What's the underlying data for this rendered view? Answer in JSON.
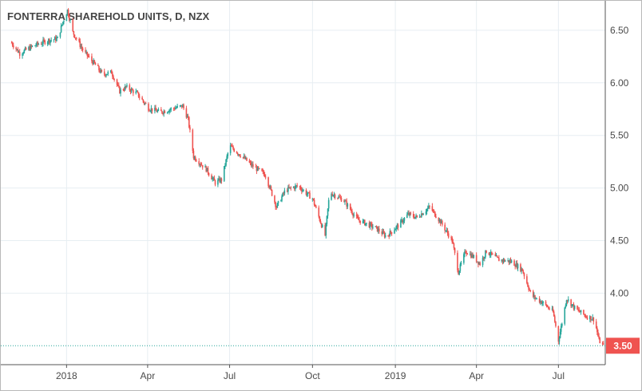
{
  "chart_data": {
    "type": "candlestick",
    "title": "FONTERRA SHAREHOLD UNITS, D, NZX",
    "y_ticks": [
      "6.50",
      "6.00",
      "5.50",
      "5.00",
      "4.50",
      "4.00"
    ],
    "x_ticks": [
      "2018",
      "Apr",
      "Jul",
      "Oct",
      "2019",
      "Apr",
      "Jul"
    ],
    "ylim": [
      3.32,
      6.78
    ],
    "last_price": "3.50",
    "grid": true,
    "colors": {
      "up": "#26a69a",
      "down": "#ef5350",
      "last": "#ef5350",
      "grid": "#e7eef2"
    },
    "price_path": [
      [
        "2017-11-01",
        6.38
      ],
      [
        "2017-11-10",
        6.28
      ],
      [
        "2017-11-25",
        6.35
      ],
      [
        "2017-12-10",
        6.4
      ],
      [
        "2017-12-22",
        6.42
      ],
      [
        "2017-12-28",
        6.58
      ],
      [
        "2018-01-02",
        6.69
      ],
      [
        "2018-01-08",
        6.48
      ],
      [
        "2018-01-20",
        6.3
      ],
      [
        "2018-02-01",
        6.18
      ],
      [
        "2018-02-10",
        6.08
      ],
      [
        "2018-02-20",
        6.1
      ],
      [
        "2018-03-01",
        5.92
      ],
      [
        "2018-03-08",
        5.96
      ],
      [
        "2018-03-20",
        5.9
      ],
      [
        "2018-04-02",
        5.76
      ],
      [
        "2018-04-15",
        5.72
      ],
      [
        "2018-05-01",
        5.76
      ],
      [
        "2018-05-10",
        5.78
      ],
      [
        "2018-05-16",
        5.65
      ],
      [
        "2018-05-22",
        5.3
      ],
      [
        "2018-06-05",
        5.18
      ],
      [
        "2018-06-15",
        5.05
      ],
      [
        "2018-06-22",
        5.08
      ],
      [
        "2018-07-01",
        5.4
      ],
      [
        "2018-07-08",
        5.35
      ],
      [
        "2018-07-15",
        5.3
      ],
      [
        "2018-07-25",
        5.22
      ],
      [
        "2018-08-10",
        5.12
      ],
      [
        "2018-08-22",
        4.82
      ],
      [
        "2018-09-01",
        4.98
      ],
      [
        "2018-09-15",
        5.02
      ],
      [
        "2018-10-01",
        4.9
      ],
      [
        "2018-10-15",
        4.55
      ],
      [
        "2018-10-20",
        4.96
      ],
      [
        "2018-11-05",
        4.88
      ],
      [
        "2018-11-20",
        4.7
      ],
      [
        "2018-12-10",
        4.62
      ],
      [
        "2018-12-22",
        4.54
      ],
      [
        "2019-01-05",
        4.65
      ],
      [
        "2019-01-15",
        4.75
      ],
      [
        "2019-01-25",
        4.72
      ],
      [
        "2019-02-08",
        4.82
      ],
      [
        "2019-02-20",
        4.68
      ],
      [
        "2019-03-05",
        4.5
      ],
      [
        "2019-03-12",
        4.2
      ],
      [
        "2019-03-20",
        4.4
      ],
      [
        "2019-03-28",
        4.35
      ],
      [
        "2019-04-05",
        4.28
      ],
      [
        "2019-04-12",
        4.4
      ],
      [
        "2019-04-25",
        4.32
      ],
      [
        "2019-05-10",
        4.3
      ],
      [
        "2019-05-22",
        4.22
      ],
      [
        "2019-06-01",
        3.98
      ],
      [
        "2019-06-15",
        3.9
      ],
      [
        "2019-06-25",
        3.82
      ],
      [
        "2019-07-01",
        3.55
      ],
      [
        "2019-07-05",
        3.72
      ],
      [
        "2019-07-10",
        3.95
      ],
      [
        "2019-07-20",
        3.85
      ],
      [
        "2019-08-01",
        3.78
      ],
      [
        "2019-08-10",
        3.75
      ],
      [
        "2019-08-15",
        3.55
      ],
      [
        "2019-08-20",
        3.5
      ]
    ]
  }
}
